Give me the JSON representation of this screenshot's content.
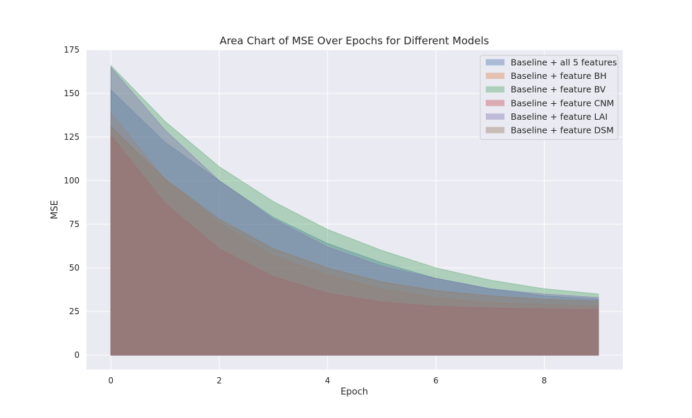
{
  "chart_data": {
    "type": "area",
    "title": "Area Chart of MSE Over Epochs for Different Models",
    "xlabel": "Epoch",
    "ylabel": "MSE",
    "xlim": [
      -0.45,
      9.45
    ],
    "ylim": [
      -8.3,
      175
    ],
    "x": [
      0,
      1,
      2,
      3,
      4,
      5,
      6,
      7,
      8,
      9
    ],
    "x_ticks": [
      0,
      2,
      4,
      6,
      8
    ],
    "y_ticks": [
      0,
      25,
      50,
      75,
      100,
      125,
      150,
      175
    ],
    "grid": true,
    "legend_position": "top-right",
    "series": [
      {
        "name": "Baseline + all 5 features",
        "color": "#4c72b0",
        "values": [
          152,
          122,
          100,
          79,
          64,
          53,
          44,
          38,
          34,
          32
        ]
      },
      {
        "name": "Baseline + feature BH",
        "color": "#dd8452",
        "values": [
          139,
          101,
          76,
          57,
          46,
          38,
          33,
          30,
          29,
          28
        ]
      },
      {
        "name": "Baseline + feature BV",
        "color": "#55a868",
        "values": [
          166,
          134,
          108,
          88,
          72,
          60,
          50,
          43,
          38,
          35
        ]
      },
      {
        "name": "Baseline + feature CNM",
        "color": "#c44e52",
        "values": [
          126,
          87,
          61,
          45,
          35.5,
          30.5,
          28,
          27,
          26.5,
          26
        ]
      },
      {
        "name": "Baseline + feature LAI",
        "color": "#8172b3",
        "values": [
          165,
          129,
          100,
          78,
          62,
          51,
          44,
          38,
          35,
          33
        ]
      },
      {
        "name": "Baseline + feature DSM",
        "color": "#937860",
        "values": [
          131,
          101,
          78,
          61,
          50,
          42,
          37,
          34,
          32,
          31
        ]
      }
    ]
  }
}
